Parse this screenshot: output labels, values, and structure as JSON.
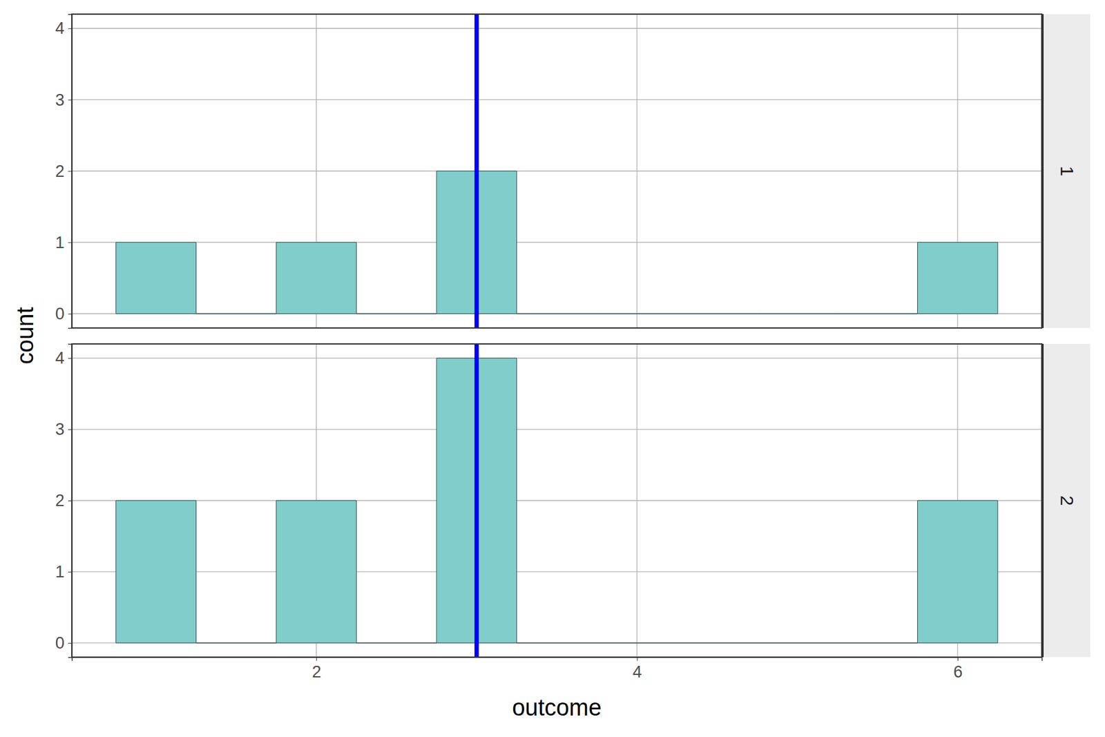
{
  "chart_data": {
    "type": "histogram",
    "x_label": "outcome",
    "y_label": "count",
    "bins": [
      0.75,
      1.25,
      1.75,
      2.25,
      2.75,
      3.25,
      3.75,
      4.25,
      4.75,
      5.25,
      5.75,
      6.25
    ],
    "series": [
      {
        "name": "1",
        "values": [
          1,
          0,
          1,
          0,
          2,
          0,
          0,
          0,
          0,
          0,
          1
        ],
        "mean": 3
      },
      {
        "name": "2",
        "values": [
          2,
          0,
          2,
          0,
          4,
          0,
          0,
          0,
          0,
          0,
          2
        ],
        "mean": 3
      }
    ],
    "color": "#80cecb",
    "xlim": [
      0.475,
      6.525
    ],
    "xticks": [
      2,
      4,
      6
    ],
    "ylim": [
      -0.2,
      4.2
    ],
    "yticks": [
      0,
      1,
      2,
      3,
      4
    ],
    "grid": true
  }
}
